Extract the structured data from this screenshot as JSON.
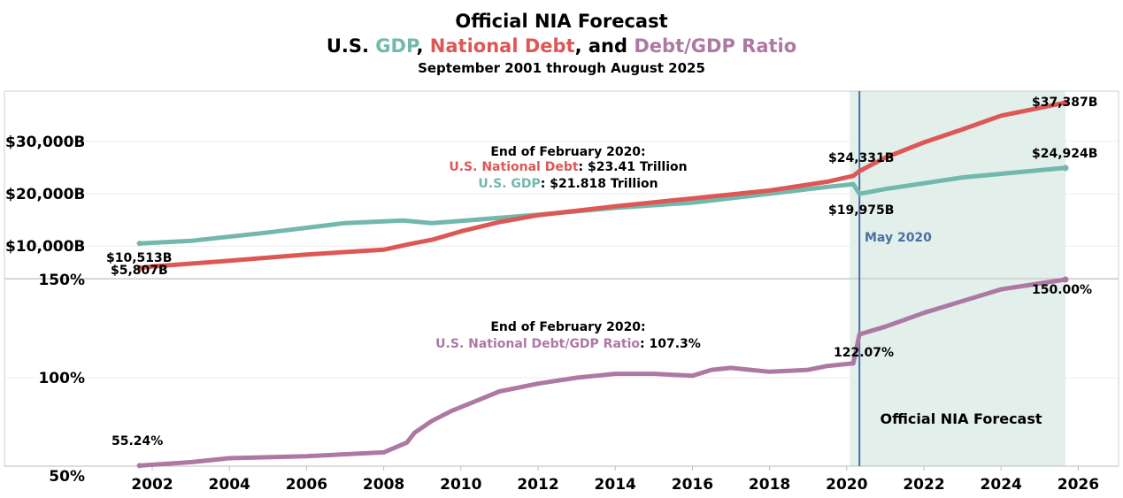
{
  "title": {
    "line1": "Official NIA Forecast",
    "line2_prefix": "U.S. ",
    "line2_gdp": "GDP",
    "line2_sep1": ", ",
    "line2_debt": "National Debt",
    "line2_sep2": ", and ",
    "line2_ratio": "Debt/GDP Ratio",
    "subtitle": "September 2001 through August 2025"
  },
  "colors": {
    "gdp": "#72b8ac",
    "debt": "#dd5755",
    "ratio": "#ad78a2",
    "forecast_shade": "#e2efeb",
    "marker": "#4a6fa5"
  },
  "chart_data": [
    {
      "type": "line",
      "panel": "top",
      "x_range": [
        2001.2,
        2026.5
      ],
      "ylim": [
        2000,
        40000
      ],
      "y_ticks": [
        10000,
        20000,
        30000
      ],
      "y_tick_labels": [
        "$10,000B",
        "$20,000B",
        "$30,000B"
      ],
      "x_ticks": [
        2002,
        2004,
        2006,
        2008,
        2010,
        2012,
        2014,
        2016,
        2018,
        2020,
        2022,
        2024,
        2026
      ],
      "series": [
        {
          "name": "U.S. GDP",
          "color": "#72b8ac",
          "x": [
            2001.67,
            2003,
            2005,
            2007,
            2008.5,
            2009.25,
            2010,
            2012,
            2014,
            2016,
            2018,
            2019.5,
            2020.17,
            2020.33,
            2020.5,
            2021,
            2022,
            2023,
            2024,
            2025.67
          ],
          "y": [
            10513,
            11000,
            12600,
            14400,
            14900,
            14400,
            14800,
            16000,
            17300,
            18300,
            20000,
            21300,
            21818,
            19975,
            20200,
            20900,
            22000,
            23100,
            23800,
            24924
          ]
        },
        {
          "name": "U.S. National Debt",
          "color": "#dd5755",
          "x": [
            2001.67,
            2002,
            2004,
            2006,
            2008,
            2008.75,
            2009.25,
            2010,
            2011,
            2012,
            2014,
            2016,
            2018,
            2019.5,
            2020.17,
            2020.33,
            2021,
            2022,
            2023,
            2024,
            2025.67
          ],
          "y": [
            5807,
            6100,
            7200,
            8400,
            9300,
            10500,
            11200,
            12800,
            14600,
            15900,
            17600,
            19100,
            20600,
            22300,
            23410,
            24331,
            26900,
            29800,
            32300,
            34900,
            37387
          ]
        }
      ],
      "annotations": {
        "gdp_start": "$10,513B",
        "debt_start": "$5,807B",
        "debt_may2020": "$24,331B",
        "gdp_may2020": "$19,975B",
        "debt_end": "$37,387B",
        "gdp_end": "$24,924B",
        "feb_header": "End of February 2020:",
        "feb_debt_name": "U.S. National Debt",
        "feb_debt_value": ": $23.41 Trillion",
        "feb_gdp_name": "U.S. GDP",
        "feb_gdp_value": ": $21.818 Trillion",
        "may_label": "May 2020"
      }
    },
    {
      "type": "line",
      "panel": "bottom",
      "x_range": [
        2001.2,
        2026.5
      ],
      "ylim": [
        45,
        155
      ],
      "y_ticks": [
        50,
        100,
        150
      ],
      "y_tick_labels": [
        "50%",
        "100%",
        "150%"
      ],
      "series": [
        {
          "name": "U.S. National Debt/GDP Ratio",
          "color": "#ad78a2",
          "x": [
            2001.67,
            2003,
            2004,
            2006,
            2008,
            2008.6,
            2008.8,
            2009.25,
            2009.75,
            2010.5,
            2011,
            2012,
            2013,
            2013.5,
            2014,
            2015,
            2016,
            2016.5,
            2017,
            2017.5,
            2018,
            2019,
            2019.5,
            2020.17,
            2020.33,
            2021,
            2022,
            2023,
            2024,
            2025.67
          ],
          "y": [
            55.24,
            57,
            59,
            60,
            62,
            67,
            72,
            78,
            83,
            89,
            93,
            97,
            100,
            101,
            102,
            102,
            101,
            104,
            105,
            104,
            103,
            104,
            106,
            107.3,
            122.07,
            126,
            133,
            139,
            145,
            150.0
          ]
        }
      ],
      "annotations": {
        "start": "55.24%",
        "may2020": "122.07%",
        "end": "150.00%",
        "feb_header": "End of February 2020:",
        "feb_ratio_name": "U.S. National Debt/GDP Ratio",
        "feb_ratio_value": ": 107.3%",
        "forecast_label": "Official NIA Forecast"
      }
    }
  ]
}
